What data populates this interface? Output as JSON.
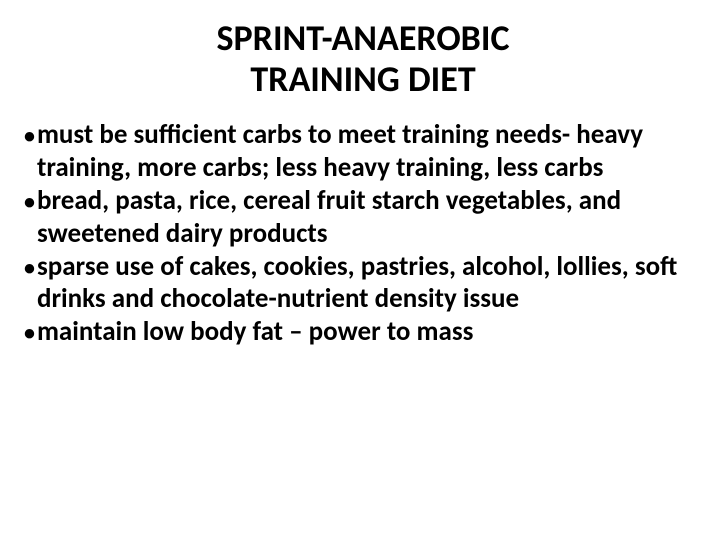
{
  "slide": {
    "title_line1": "SPRINT-ANAEROBIC",
    "title_line2": "TRAINING DIET",
    "bullets": [
      "must be sufficient carbs to meet training needs- heavy training, more carbs; less heavy training, less carbs",
      "bread, pasta, rice, cereal fruit starch vegetables, and sweetened dairy products",
      "sparse use of cakes, cookies, pastries, alcohol, lollies, soft drinks and chocolate-nutrient density issue",
      "maintain low body fat – power to mass"
    ]
  },
  "style": {
    "background_color": "#ffffff",
    "text_color": "#000000",
    "title_fontsize": 36,
    "body_fontsize": 27,
    "font_family": "Calibri",
    "font_weight": 700
  }
}
